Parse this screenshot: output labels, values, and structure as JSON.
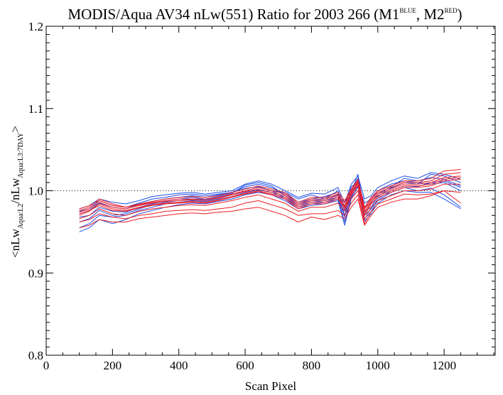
{
  "chart_data": {
    "type": "line",
    "title": {
      "main": "MODIS/Aqua AV34 nLw(551) Ratio for 2003 266 (M1",
      "sup1": "BLUE",
      "mid": ", M2",
      "sup2": "RED",
      "end": ")"
    },
    "xlabel": "Scan Pixel",
    "ylabel": {
      "open": "<nLw",
      "sub1": "Aqua:L2",
      "slash": "/nLw",
      "sub2": "Aqua:L3:7DAY",
      "close": ">"
    },
    "xlim": [
      0,
      1354
    ],
    "ylim": [
      0.8,
      1.2
    ],
    "x_ticks": [
      0,
      200,
      400,
      600,
      800,
      1000,
      1200
    ],
    "x_tick_labels": [
      "0",
      "200",
      "400",
      "600",
      "800",
      "1000",
      "1200"
    ],
    "y_ticks": [
      0.8,
      0.9,
      1.0,
      1.1,
      1.2
    ],
    "y_tick_labels": [
      "0.8",
      "0.9",
      "1.0",
      "1.1",
      "1.2"
    ],
    "reference_line": {
      "y": 1.0,
      "style": "dotted"
    },
    "grid": false,
    "colors": {
      "blue": "#1f4fe6",
      "red": "#ee1c24"
    },
    "x": [
      100,
      130,
      160,
      200,
      240,
      280,
      320,
      360,
      400,
      440,
      480,
      520,
      560,
      600,
      640,
      680,
      720,
      760,
      800,
      840,
      880,
      900,
      920,
      940,
      960,
      980,
      1000,
      1040,
      1080,
      1120,
      1160,
      1200,
      1250
    ],
    "series": [
      {
        "color": "blue",
        "values": [
          0.975,
          0.978,
          0.988,
          0.982,
          0.98,
          0.985,
          0.99,
          0.992,
          0.995,
          0.996,
          0.994,
          0.996,
          0.998,
          1.003,
          1.005,
          1.0,
          0.998,
          0.99,
          0.995,
          0.99,
          1.0,
          0.98,
          1.005,
          1.01,
          0.985,
          0.99,
          1.0,
          1.008,
          1.012,
          1.01,
          1.008,
          1.01,
          1.0
        ]
      },
      {
        "color": "blue",
        "values": [
          0.972,
          0.976,
          0.985,
          0.98,
          0.978,
          0.983,
          0.987,
          0.99,
          0.992,
          0.994,
          0.992,
          0.995,
          0.998,
          1.005,
          1.008,
          1.004,
          0.996,
          0.986,
          0.99,
          0.993,
          0.998,
          0.975,
          1.0,
          1.015,
          0.98,
          0.985,
          0.996,
          1.005,
          1.015,
          1.012,
          1.016,
          1.014,
          1.006
        ]
      },
      {
        "color": "blue",
        "values": [
          0.968,
          0.97,
          0.98,
          0.975,
          0.974,
          0.98,
          0.984,
          0.988,
          0.99,
          0.992,
          0.99,
          0.993,
          0.997,
          1.007,
          1.01,
          1.006,
          0.994,
          0.984,
          0.988,
          0.99,
          0.995,
          0.97,
          0.998,
          1.02,
          0.975,
          0.98,
          0.993,
          1.003,
          1.01,
          1.008,
          1.02,
          1.018,
          1.01
        ]
      },
      {
        "color": "blue",
        "values": [
          0.962,
          0.966,
          0.976,
          0.97,
          0.972,
          0.978,
          0.983,
          0.986,
          0.988,
          0.99,
          0.989,
          0.992,
          0.995,
          1.0,
          1.004,
          1.0,
          0.992,
          0.982,
          0.986,
          0.988,
          0.992,
          0.968,
          0.995,
          1.012,
          0.97,
          0.978,
          0.99,
          1.0,
          1.006,
          1.005,
          1.01,
          1.012,
          1.004
        ]
      },
      {
        "color": "blue",
        "values": [
          0.955,
          0.96,
          0.97,
          0.968,
          0.97,
          0.976,
          0.98,
          0.984,
          0.986,
          0.988,
          0.987,
          0.99,
          0.993,
          0.998,
          1.001,
          0.998,
          0.99,
          0.98,
          0.984,
          0.986,
          0.99,
          0.962,
          0.992,
          1.008,
          0.966,
          0.975,
          0.988,
          0.998,
          1.004,
          1.0,
          1.003,
          0.995,
          0.98
        ]
      },
      {
        "color": "blue",
        "values": [
          0.95,
          0.955,
          0.965,
          0.96,
          0.965,
          0.972,
          0.976,
          0.98,
          0.983,
          0.985,
          0.984,
          0.987,
          0.99,
          0.995,
          0.998,
          0.995,
          0.988,
          0.978,
          0.982,
          0.984,
          0.988,
          0.958,
          0.99,
          1.005,
          0.963,
          0.972,
          0.985,
          0.995,
          1.0,
          0.998,
          0.998,
          0.99,
          0.978
        ]
      },
      {
        "color": "blue",
        "values": [
          0.978,
          0.982,
          0.99,
          0.986,
          0.984,
          0.988,
          0.993,
          0.995,
          0.997,
          0.998,
          0.996,
          0.998,
          1.0,
          1.008,
          1.012,
          1.008,
          1.0,
          0.992,
          0.997,
          0.996,
          1.004,
          0.985,
          1.008,
          1.018,
          0.99,
          0.994,
          1.004,
          1.012,
          1.018,
          1.015,
          1.022,
          1.02,
          1.014
        ]
      },
      {
        "color": "red",
        "values": [
          0.976,
          0.98,
          0.99,
          0.984,
          0.98,
          0.983,
          0.986,
          0.988,
          0.99,
          0.99,
          0.99,
          0.992,
          0.996,
          1.0,
          1.004,
          1.0,
          0.996,
          0.984,
          0.99,
          0.99,
          0.996,
          0.985,
          1.0,
          1.012,
          0.978,
          0.99,
          0.998,
          1.004,
          1.01,
          1.01,
          1.012,
          1.02,
          1.022
        ]
      },
      {
        "color": "red",
        "values": [
          0.974,
          0.978,
          0.986,
          0.98,
          0.978,
          0.982,
          0.985,
          0.987,
          0.988,
          0.989,
          0.988,
          0.991,
          0.995,
          0.999,
          1.002,
          0.998,
          0.994,
          0.982,
          0.988,
          0.988,
          0.994,
          0.982,
          0.998,
          1.01,
          0.975,
          0.988,
          0.996,
          1.002,
          1.008,
          1.008,
          1.01,
          1.016,
          1.018
        ]
      },
      {
        "color": "red",
        "values": [
          0.97,
          0.975,
          0.984,
          0.978,
          0.976,
          0.98,
          0.983,
          0.985,
          0.986,
          0.987,
          0.986,
          0.989,
          0.993,
          0.997,
          1.0,
          0.996,
          0.992,
          0.98,
          0.986,
          0.986,
          0.992,
          0.98,
          0.996,
          1.008,
          0.972,
          0.986,
          0.994,
          1.0,
          1.006,
          1.006,
          1.008,
          1.014,
          1.016
        ]
      },
      {
        "color": "red",
        "values": [
          0.972,
          0.976,
          0.982,
          0.976,
          0.975,
          0.979,
          0.982,
          0.984,
          0.985,
          0.986,
          0.985,
          0.988,
          0.992,
          0.996,
          0.999,
          0.995,
          0.99,
          0.978,
          0.984,
          0.984,
          0.99,
          0.978,
          0.994,
          1.006,
          0.97,
          0.984,
          0.992,
          0.998,
          1.004,
          1.004,
          1.006,
          1.012,
          1.014
        ]
      },
      {
        "color": "red",
        "values": [
          0.978,
          0.982,
          0.988,
          0.982,
          0.98,
          0.984,
          0.987,
          0.99,
          0.992,
          0.993,
          0.992,
          0.994,
          0.998,
          1.002,
          1.006,
          1.002,
          0.998,
          0.986,
          0.992,
          0.992,
          0.998,
          0.988,
          1.002,
          1.014,
          0.98,
          0.992,
          1.0,
          1.006,
          1.012,
          1.012,
          1.015,
          1.024,
          1.026
        ]
      },
      {
        "color": "red",
        "values": [
          0.966,
          0.97,
          0.978,
          0.972,
          0.97,
          0.975,
          0.978,
          0.98,
          0.982,
          0.983,
          0.982,
          0.985,
          0.988,
          0.992,
          0.995,
          0.99,
          0.985,
          0.975,
          0.98,
          0.98,
          0.985,
          0.975,
          0.99,
          1.0,
          0.965,
          0.98,
          0.988,
          0.994,
          1.0,
          1.0,
          1.002,
          1.008,
          1.008
        ]
      },
      {
        "color": "red",
        "values": [
          0.962,
          0.965,
          0.972,
          0.968,
          0.966,
          0.97,
          0.972,
          0.975,
          0.976,
          0.977,
          0.976,
          0.978,
          0.98,
          0.985,
          0.988,
          0.983,
          0.978,
          0.97,
          0.972,
          0.972,
          0.976,
          0.97,
          0.985,
          0.995,
          0.96,
          0.975,
          0.984,
          0.99,
          0.996,
          0.995,
          0.996,
          1.0,
          0.998
        ]
      },
      {
        "color": "red",
        "values": [
          0.955,
          0.958,
          0.965,
          0.962,
          0.962,
          0.966,
          0.968,
          0.97,
          0.972,
          0.973,
          0.972,
          0.974,
          0.975,
          0.978,
          0.98,
          0.975,
          0.97,
          0.962,
          0.968,
          0.965,
          0.97,
          0.966,
          0.98,
          0.99,
          0.958,
          0.97,
          0.98,
          0.986,
          0.99,
          0.99,
          0.994,
          1.0,
          0.985
        ]
      }
    ]
  }
}
